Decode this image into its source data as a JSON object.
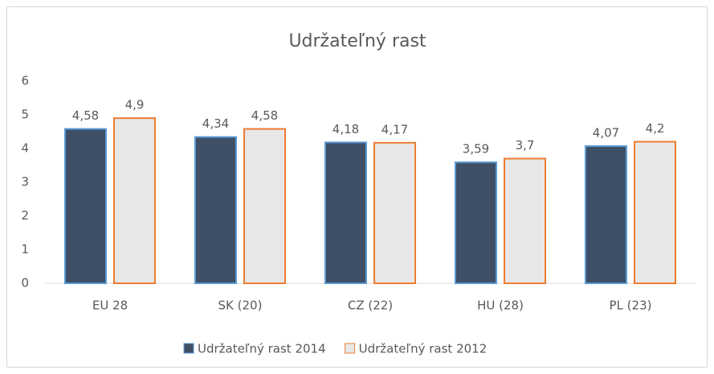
{
  "chart_data": {
    "type": "bar",
    "title": "Udržateľný rast",
    "categories": [
      "EU 28",
      "SK (20)",
      "CZ (22)",
      "HU (28)",
      "PL (23)"
    ],
    "series": [
      {
        "name": "Udržateľný rast 2014",
        "color": "#3f4f66",
        "stroke": "#5b9bd5",
        "values": [
          4.58,
          4.34,
          4.18,
          3.59,
          4.07
        ],
        "value_labels": [
          "4,58",
          "4,34",
          "4,18",
          "3,59",
          "4,07"
        ]
      },
      {
        "name": "Udržateľný rast 2012",
        "color": "#e7e7e7",
        "stroke": "#ed7d31",
        "values": [
          4.9,
          4.58,
          4.17,
          3.7,
          4.2
        ],
        "value_labels": [
          "4,9",
          "4,58",
          "4,17",
          "3,7",
          "4,2"
        ]
      }
    ],
    "ylim": [
      0,
      6
    ],
    "yticks": [
      0,
      1,
      2,
      3,
      4,
      5,
      6
    ],
    "grid": false,
    "legend": "bottom"
  }
}
